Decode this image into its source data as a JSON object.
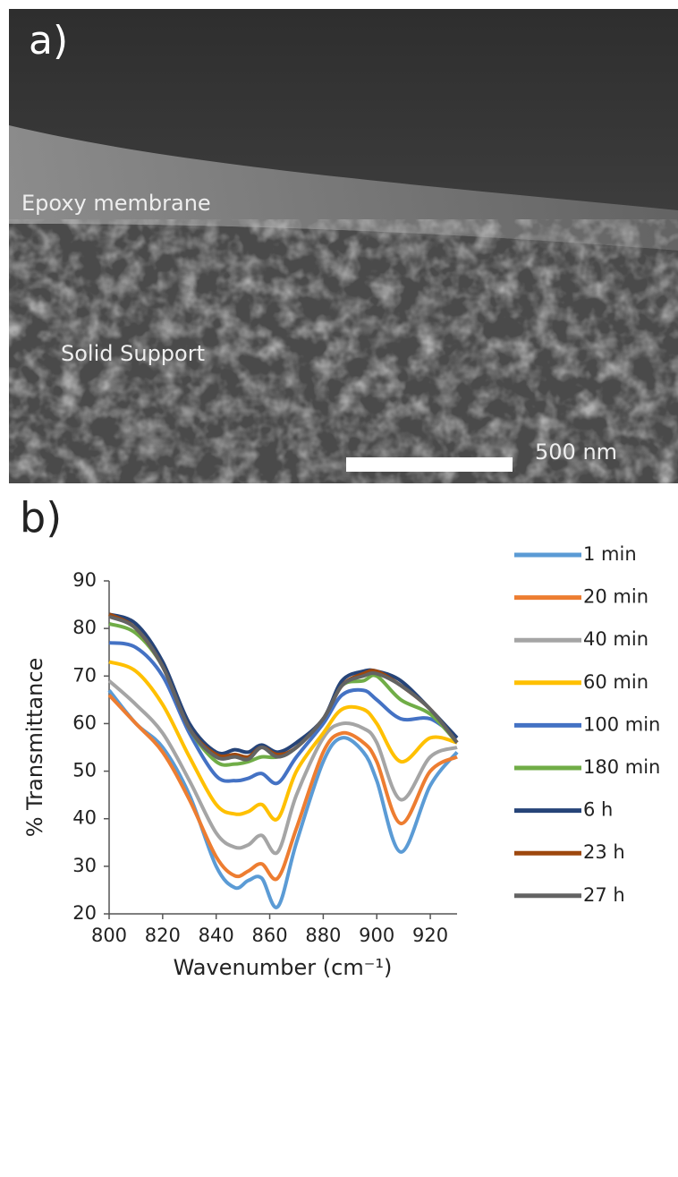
{
  "panel_a": {
    "label": "a)",
    "membrane_label": "Epoxy membrane",
    "support_label": "Solid Support",
    "scale_label": "500 nm"
  },
  "chart_data": {
    "type": "line",
    "panel_label": "b)",
    "x_label": "Wavenumber (cm⁻¹)",
    "y_label": "% Transmittance",
    "x": [
      800,
      810,
      820,
      830,
      840,
      847,
      852,
      857,
      863,
      870,
      880,
      887,
      895,
      900,
      909,
      920,
      930
    ],
    "xlim": [
      800,
      930
    ],
    "xticks": [
      800,
      820,
      840,
      860,
      880,
      900,
      920
    ],
    "ylim": [
      20,
      90
    ],
    "yticks": [
      20,
      30,
      40,
      50,
      60,
      70,
      80,
      90
    ],
    "legend": "right",
    "series": [
      {
        "name": "1 min",
        "color": "#5b9bd5",
        "values": [
          67,
          60,
          55,
          45,
          30,
          25.5,
          27,
          27.5,
          21.5,
          35,
          52,
          57,
          54,
          48,
          33,
          47,
          54
        ]
      },
      {
        "name": "20 min",
        "color": "#ed7d31",
        "values": [
          66,
          60,
          54,
          44,
          32,
          28,
          29,
          30.5,
          27.5,
          38,
          54,
          58,
          56,
          52,
          39,
          50,
          53
        ]
      },
      {
        "name": "40 min",
        "color": "#a5a5a5",
        "values": [
          69,
          64,
          58,
          48,
          37,
          34,
          34.5,
          36.5,
          33,
          45,
          57,
          60,
          59,
          56,
          44,
          53,
          55
        ]
      },
      {
        "name": "60 min",
        "color": "#ffc000",
        "values": [
          73,
          71,
          64,
          53,
          43,
          41,
          41.5,
          43,
          40,
          50,
          58,
          63,
          63,
          60,
          52,
          57,
          56
        ]
      },
      {
        "name": "100 min",
        "color": "#4472c4",
        "values": [
          77,
          76,
          70,
          58,
          49,
          48,
          48.5,
          49.5,
          47.5,
          53,
          60,
          66,
          67,
          65,
          61,
          61,
          57
        ]
      },
      {
        "name": "180 min",
        "color": "#70ad47",
        "values": [
          81,
          79,
          72,
          59,
          52,
          51.5,
          52,
          53,
          53,
          55,
          61,
          68,
          69,
          70,
          65,
          62,
          56
        ]
      },
      {
        "name": "6 h",
        "color": "#264478",
        "values": [
          83,
          81,
          73,
          60,
          54,
          54.5,
          54,
          55.5,
          54,
          56,
          61,
          69,
          71,
          71,
          69,
          63,
          57
        ]
      },
      {
        "name": "23 h",
        "color": "#9e480e",
        "values": [
          83,
          80,
          72,
          59,
          53.5,
          53.5,
          53,
          55,
          53.5,
          55,
          61,
          68,
          70.5,
          71,
          68,
          63,
          56
        ]
      },
      {
        "name": "27 h",
        "color": "#636363",
        "values": [
          82.5,
          80,
          72,
          59,
          53,
          53,
          52.5,
          55,
          53,
          55,
          61,
          68,
          70,
          70.5,
          68,
          63,
          56
        ]
      }
    ]
  }
}
